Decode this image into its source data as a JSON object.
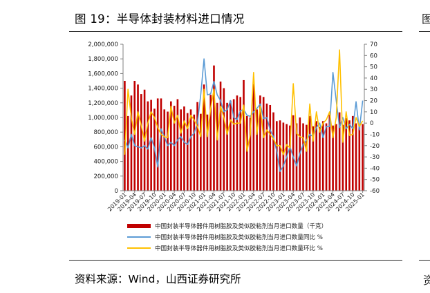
{
  "figure": {
    "title": "图 19：半导体封装材料进口情况",
    "source": "资料来源：Wind，山西证券研究所",
    "next_column_glyph_top": "图",
    "next_column_glyph_bottom": "资"
  },
  "colors": {
    "bar": "#c00000",
    "yoy": "#5b9bd5",
    "mom": "#ffc000",
    "axis": "#808080",
    "rule": "#222222"
  },
  "chart_data": {
    "type": "bar",
    "title": "",
    "xlabel": "",
    "ylabel": "",
    "legend_position": "bottom",
    "grid": false,
    "categories": [
      "2019-01",
      "2019-02",
      "2019-03",
      "2019-04",
      "2019-05",
      "2019-06",
      "2019-07",
      "2019-08",
      "2019-09",
      "2019-10",
      "2019-11",
      "2019-12",
      "2020-01",
      "2020-02",
      "2020-03",
      "2020-04",
      "2020-05",
      "2020-06",
      "2020-07",
      "2020-08",
      "2020-09",
      "2020-10",
      "2020-11",
      "2020-12",
      "2021-01",
      "2021-02",
      "2021-03",
      "2021-04",
      "2021-05",
      "2021-06",
      "2021-07",
      "2021-08",
      "2021-09",
      "2021-10",
      "2021-11",
      "2021-12",
      "2022-01",
      "2022-02",
      "2022-03",
      "2022-04",
      "2022-05",
      "2022-06",
      "2022-07",
      "2022-08",
      "2022-09",
      "2022-10",
      "2022-11",
      "2022-12",
      "2023-01",
      "2023-02",
      "2023-03",
      "2023-04",
      "2023-05",
      "2023-06",
      "2023-07",
      "2023-08",
      "2023-09",
      "2023-10",
      "2023-11",
      "2023-12",
      "2024-01",
      "2024-02",
      "2024-03",
      "2024-04",
      "2024-05",
      "2024-06",
      "2024-07",
      "2024-08",
      "2024-09",
      "2024-10",
      "2024-11",
      "2024-12",
      "2025-01"
    ],
    "x_tick_labels": [
      "2019-01",
      "2019-04",
      "2019-07",
      "2019-10",
      "2020-01",
      "2020-04",
      "2020-07",
      "2020-10",
      "2021-01",
      "2021-04",
      "2021-07",
      "2021-10",
      "2022-01",
      "2022-04",
      "2022-07",
      "2022-10",
      "2023-01",
      "2023-04",
      "2023-07",
      "2023-10",
      "2024-01",
      "2024-04",
      "2024-07",
      "2024-10",
      "2025-01"
    ],
    "y_left": {
      "min": 0,
      "max": 2000000,
      "step": 200000,
      "tick_labels": [
        "0",
        "200,000",
        "400,000",
        "600,000",
        "800,000",
        "1,000,000",
        "1,200,000",
        "1,400,000",
        "1,600,000",
        "1,800,000",
        "2,000,000"
      ]
    },
    "y_right": {
      "min": -60,
      "max": 70,
      "step": 10,
      "tick_labels": [
        "-60",
        "-50",
        "-40",
        "-30",
        "-20",
        "-10",
        "0",
        "10",
        "20",
        "30",
        "40",
        "50",
        "60",
        "70"
      ]
    },
    "series": [
      {
        "name": "中国封装半导体器件用树脂胶及类似胶粘剂当月进口数量（千克）",
        "axis": "left",
        "kind": "bar",
        "values": [
          1500000,
          1020000,
          1300000,
          1500000,
          1450000,
          1320000,
          1380000,
          1220000,
          1240000,
          1120000,
          1260000,
          1260000,
          1110000,
          1080000,
          1220000,
          1160000,
          1250000,
          1110000,
          1150000,
          1060000,
          1110000,
          1040000,
          1210000,
          1050000,
          1450000,
          1040000,
          1310000,
          1710000,
          1200000,
          1490000,
          1400000,
          1200000,
          1230000,
          1250000,
          1300000,
          1280000,
          1510000,
          1020000,
          1000000,
          1460000,
          1110000,
          1300000,
          1280000,
          1190000,
          1170000,
          1070000,
          950000,
          960000,
          930000,
          910000,
          890000,
          1030000,
          920000,
          1000000,
          920000,
          900000,
          1020000,
          880000,
          950000,
          870000,
          950000,
          920000,
          1040000,
          890000,
          910000,
          1070000,
          900000,
          990000,
          960000,
          1020000,
          920000,
          890000,
          910000
        ]
      },
      {
        "name": "中国封装半导体器件用树脂胶及类似胶粘剂当月进口数量同比 %",
        "axis": "right",
        "kind": "line",
        "values": [
          -15,
          -22,
          -10,
          -20,
          -21,
          -22,
          -20,
          -23,
          -13,
          -22,
          -39,
          -5,
          -12,
          -20,
          -17,
          -20,
          -15,
          -12,
          -17,
          -19,
          -12,
          -9,
          0,
          25,
          57,
          25,
          26,
          37,
          25,
          20,
          10,
          12,
          20,
          5,
          3,
          11,
          12,
          7,
          6,
          10,
          13,
          17,
          4,
          5,
          -6,
          -12,
          -25,
          -43,
          -38,
          -30,
          -21,
          -30,
          -38,
          -27,
          -19,
          -15,
          -10,
          -12,
          -4,
          0,
          -13,
          -3,
          -3,
          45,
          20,
          -4,
          5,
          -5,
          -1,
          -5,
          19,
          -6,
          20
        ]
      },
      {
        "name": "中国封装半导体器件用树脂胶及类似胶粘剂当月进口数量环比 %",
        "axis": "right",
        "kind": "line",
        "values": [
          -28,
          30,
          5,
          -10,
          10,
          -2,
          -16,
          0,
          10,
          5,
          -4,
          -10,
          -12,
          -13,
          15,
          0,
          7,
          -9,
          2,
          -5,
          7,
          3,
          -3,
          -12,
          30,
          -12,
          13,
          30,
          -15,
          15,
          5,
          -10,
          3,
          -1,
          0,
          0,
          16,
          -25,
          -10,
          45,
          -10,
          15,
          -13,
          -6,
          -10,
          -14,
          -20,
          -20,
          -28,
          -19,
          -22,
          35,
          -9,
          -12,
          -13,
          -25,
          17,
          -16,
          10,
          -8,
          0,
          3,
          10,
          -13,
          5,
          65,
          -17,
          10,
          -11,
          -10,
          5,
          -3,
          2
        ]
      }
    ]
  }
}
